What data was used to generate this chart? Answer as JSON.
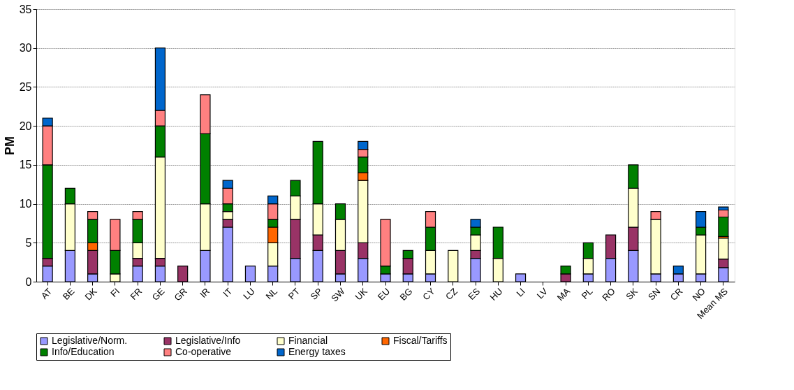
{
  "chart_data": {
    "type": "bar",
    "stacked": true,
    "ylabel": "PM",
    "ylim": [
      0,
      35
    ],
    "yticks": [
      0,
      5,
      10,
      15,
      20,
      25,
      30,
      35
    ],
    "grid": "y",
    "legend": "bottom",
    "categories": [
      "AT",
      "BE",
      "DK",
      "FI",
      "FR",
      "GE",
      "GR",
      "IR",
      "IT",
      "LU",
      "NL",
      "PT",
      "SP",
      "SW",
      "UK",
      "EU",
      "BG",
      "CY",
      "CZ",
      "ES",
      "HU",
      "LI",
      "LV",
      "MA",
      "PL",
      "RO",
      "SK",
      "SN",
      "CR",
      "NO",
      "Mean MS"
    ],
    "series": [
      {
        "name": "Legislative/Norm.",
        "color": "#9999ff",
        "values": [
          2,
          4,
          1,
          0,
          2,
          2,
          0,
          4,
          7,
          2,
          2,
          3,
          4,
          1,
          3,
          1,
          1,
          1,
          0,
          3,
          0,
          1,
          0,
          0,
          1,
          3,
          4,
          1,
          1,
          1,
          1.8
        ]
      },
      {
        "name": "Legislative/Info",
        "color": "#993366",
        "values": [
          1,
          0,
          3,
          0,
          1,
          1,
          2,
          0,
          1,
          0,
          0,
          5,
          2,
          3,
          2,
          0,
          2,
          0,
          0,
          1,
          0,
          0,
          0,
          1,
          0,
          3,
          3,
          0,
          0,
          0,
          1.1
        ]
      },
      {
        "name": "Financial",
        "color": "#ffffcc",
        "values": [
          0,
          6,
          0,
          1,
          2,
          13,
          0,
          6,
          1,
          0,
          3,
          3,
          4,
          4,
          8,
          0,
          0,
          3,
          4,
          2,
          3,
          0,
          0,
          0,
          2,
          0,
          5,
          7,
          0,
          5,
          2.7
        ]
      },
      {
        "name": "Fiscal/Tariffs",
        "color": "#ff6600",
        "values": [
          0,
          0,
          1,
          0,
          0,
          0,
          0,
          0,
          0,
          0,
          2,
          0,
          0,
          0,
          1,
          0,
          0,
          0,
          0,
          0,
          0,
          0,
          0,
          0,
          0,
          0,
          0,
          0,
          0,
          0,
          0.2
        ]
      },
      {
        "name": "Info/Education",
        "color": "#008000",
        "values": [
          12,
          2,
          3,
          3,
          3,
          4,
          0,
          9,
          1,
          0,
          1,
          2,
          8,
          2,
          2,
          1,
          1,
          3,
          0,
          1,
          4,
          0,
          0,
          1,
          2,
          0,
          3,
          0,
          0,
          1,
          2.5
        ]
      },
      {
        "name": "Co-operative",
        "color": "#ff8080",
        "values": [
          5,
          0,
          1,
          4,
          1,
          2,
          0,
          5,
          2,
          0,
          2,
          0,
          0,
          0,
          1,
          6,
          0,
          2,
          0,
          0,
          0,
          0,
          0,
          0,
          0,
          0,
          0,
          1,
          0,
          0,
          0.9
        ]
      },
      {
        "name": "Energy taxes",
        "color": "#0066cc",
        "values": [
          1,
          0,
          0,
          0,
          0,
          8,
          0,
          0,
          1,
          0,
          1,
          0,
          0,
          0,
          1,
          0,
          0,
          0,
          0,
          1,
          0,
          0,
          0,
          0,
          0,
          0,
          0,
          0,
          1,
          2,
          0.4
        ]
      }
    ]
  }
}
